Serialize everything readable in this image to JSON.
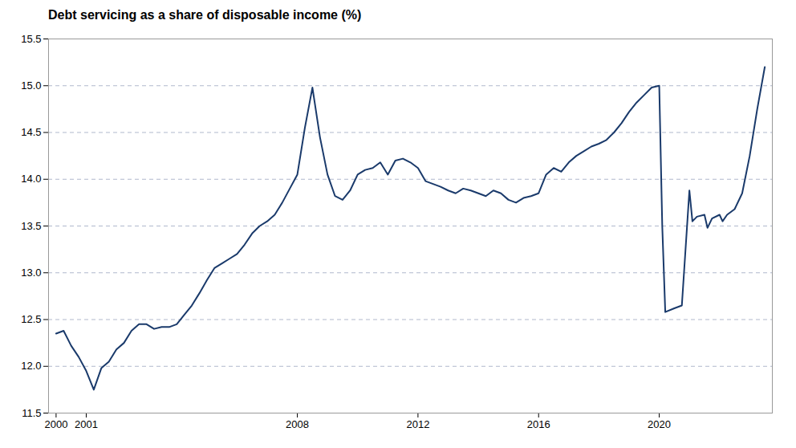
{
  "chart_data": {
    "type": "line",
    "title": "Debt servicing as a share of disposable income (%)",
    "color": "#1a3a6b",
    "grid": true,
    "xlim": [
      1999.75,
      2023.75
    ],
    "ylim": [
      11.5,
      15.5
    ],
    "xticks": [
      2000,
      2001,
      2008,
      2012,
      2016,
      2020
    ],
    "yticks": [
      11.5,
      {
        "value": 12,
        "label": "12.0"
      },
      12.5,
      {
        "value": 13,
        "label": "13.0"
      },
      13.5,
      {
        "value": 14,
        "label": "14.0"
      },
      14.5,
      {
        "value": 15,
        "label": "15.0"
      },
      15.5
    ],
    "x": [
      2000.0,
      2000.25,
      2000.5,
      2000.75,
      2001.0,
      2001.25,
      2001.5,
      2001.75,
      2002.0,
      2002.25,
      2002.5,
      2002.75,
      2003.0,
      2003.25,
      2003.5,
      2003.75,
      2004.0,
      2004.25,
      2004.5,
      2004.75,
      2005.0,
      2005.25,
      2005.5,
      2005.75,
      2006.0,
      2006.25,
      2006.5,
      2006.75,
      2007.0,
      2007.25,
      2007.5,
      2007.75,
      2008.0,
      2008.25,
      2008.5,
      2008.75,
      2009.0,
      2009.25,
      2009.5,
      2009.75,
      2010.0,
      2010.25,
      2010.5,
      2010.75,
      2011.0,
      2011.25,
      2011.5,
      2011.75,
      2012.0,
      2012.25,
      2012.5,
      2012.75,
      2013.0,
      2013.25,
      2013.5,
      2013.75,
      2014.0,
      2014.25,
      2014.5,
      2014.75,
      2015.0,
      2015.25,
      2015.5,
      2015.75,
      2016.0,
      2016.25,
      2016.5,
      2016.75,
      2017.0,
      2017.25,
      2017.5,
      2017.75,
      2018.0,
      2018.25,
      2018.5,
      2018.75,
      2019.0,
      2019.25,
      2019.5,
      2019.75,
      2020.0,
      2020.1,
      2020.2,
      2020.5,
      2020.75,
      2021.0,
      2021.1,
      2021.25,
      2021.5,
      2021.6,
      2021.75,
      2022.0,
      2022.1,
      2022.25,
      2022.5,
      2022.75,
      2023.0,
      2023.25,
      2023.5
    ],
    "values": [
      12.35,
      12.38,
      12.22,
      12.1,
      11.95,
      11.75,
      11.98,
      12.05,
      12.18,
      12.25,
      12.38,
      12.45,
      12.45,
      12.4,
      12.42,
      12.42,
      12.45,
      12.55,
      12.65,
      12.78,
      12.92,
      13.05,
      13.1,
      13.15,
      13.2,
      13.3,
      13.42,
      13.5,
      13.55,
      13.62,
      13.75,
      13.9,
      14.05,
      14.55,
      14.98,
      14.45,
      14.05,
      13.82,
      13.78,
      13.88,
      14.05,
      14.1,
      14.12,
      14.18,
      14.05,
      14.2,
      14.22,
      14.18,
      14.12,
      13.98,
      13.95,
      13.92,
      13.88,
      13.85,
      13.9,
      13.88,
      13.85,
      13.82,
      13.88,
      13.85,
      13.78,
      13.75,
      13.8,
      13.82,
      13.85,
      14.05,
      14.12,
      14.08,
      14.18,
      14.25,
      14.3,
      14.35,
      14.38,
      14.42,
      14.5,
      14.6,
      14.72,
      14.82,
      14.9,
      14.98,
      15.0,
      13.5,
      12.58,
      12.62,
      12.65,
      13.88,
      13.55,
      13.6,
      13.62,
      13.48,
      13.58,
      13.62,
      13.55,
      13.62,
      13.68,
      13.85,
      14.25,
      14.75,
      15.2
    ]
  }
}
